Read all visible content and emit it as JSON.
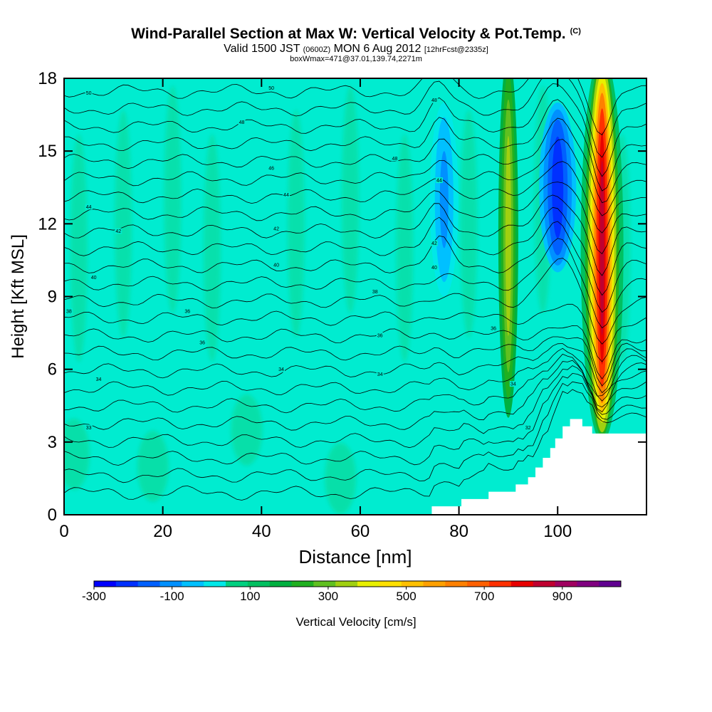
{
  "title": {
    "main": "Wind-Parallel Section at Max W: Vertical Velocity & Pot.Temp.",
    "copyright": "(C)",
    "valid_prefix": "Valid 1500 JST",
    "valid_utc": "(0600Z)",
    "valid_date": "MON 6 Aug 2012",
    "forecast": "[12hrFcst@2335z]",
    "box_info": "boxWmax=471@37.01,139.74,2271m"
  },
  "chart_data": {
    "type": "heatmap",
    "xlabel": "Distance [nm]",
    "ylabel": "Height [Kft MSL]",
    "xlim": [
      0,
      118
    ],
    "ylim": [
      0,
      18
    ],
    "x_ticks": [
      0,
      20,
      40,
      60,
      80,
      100
    ],
    "y_ticks": [
      0,
      3,
      6,
      9,
      12,
      15,
      18
    ],
    "colorbar": {
      "label": "Vertical Velocity [cm/s]",
      "tick_labels": [
        "-300",
        "-100",
        "100",
        "300",
        "500",
        "700",
        "900"
      ],
      "tick_values": [
        -300,
        -100,
        100,
        300,
        500,
        700,
        900
      ],
      "range": [
        -300,
        1050
      ],
      "colors": [
        "#0000ff",
        "#0030ff",
        "#0060ff",
        "#0090ff",
        "#00c0ff",
        "#00e8e8",
        "#00d080",
        "#00c060",
        "#00b040",
        "#20b020",
        "#60c020",
        "#a0d010",
        "#e8f000",
        "#ffe000",
        "#ffc000",
        "#ffa000",
        "#ff8000",
        "#ff6000",
        "#ff3000",
        "#e80000",
        "#c00030",
        "#a00060",
        "#800080",
        "#600090"
      ]
    },
    "series": [
      {
        "name": "Vertical Velocity",
        "type": "filled-contour",
        "features": [
          {
            "kind": "updraft",
            "x": 109,
            "y_range": [
              3,
              18
            ],
            "peak": 900
          },
          {
            "kind": "updraft",
            "x": 90,
            "y_range": [
              4,
              18
            ],
            "peak": 300
          },
          {
            "kind": "downdraft",
            "x": 100,
            "y_range": [
              10,
              17
            ],
            "peak": -250
          },
          {
            "kind": "downdraft",
            "x": 77,
            "y_range": [
              9,
              17
            ],
            "peak": -100
          }
        ]
      },
      {
        "name": "Pot.Temp.",
        "type": "contour",
        "labels": [
          {
            "x": 5,
            "y": 17.4,
            "value": "50"
          },
          {
            "x": 42,
            "y": 17.6,
            "value": "50"
          },
          {
            "x": 75,
            "y": 17.1,
            "value": "48"
          },
          {
            "x": 36,
            "y": 16.2,
            "value": "48"
          },
          {
            "x": 67,
            "y": 14.7,
            "value": "48"
          },
          {
            "x": 42,
            "y": 14.3,
            "value": "46"
          },
          {
            "x": 5,
            "y": 12.7,
            "value": "44"
          },
          {
            "x": 45,
            "y": 13.2,
            "value": "44"
          },
          {
            "x": 76,
            "y": 13.8,
            "value": "44"
          },
          {
            "x": 11,
            "y": 11.7,
            "value": "42"
          },
          {
            "x": 43,
            "y": 11.8,
            "value": "42"
          },
          {
            "x": 75,
            "y": 11.2,
            "value": "42"
          },
          {
            "x": 43,
            "y": 10.3,
            "value": "40"
          },
          {
            "x": 6,
            "y": 9.8,
            "value": "40"
          },
          {
            "x": 75,
            "y": 10.2,
            "value": "40"
          },
          {
            "x": 63,
            "y": 9.2,
            "value": "38"
          },
          {
            "x": 1,
            "y": 8.4,
            "value": "38"
          },
          {
            "x": 25,
            "y": 8.4,
            "value": "36"
          },
          {
            "x": 28,
            "y": 7.1,
            "value": "36"
          },
          {
            "x": 64,
            "y": 7.4,
            "value": "36"
          },
          {
            "x": 87,
            "y": 7.7,
            "value": "36"
          },
          {
            "x": 7,
            "y": 5.6,
            "value": "34"
          },
          {
            "x": 44,
            "y": 6.0,
            "value": "34"
          },
          {
            "x": 64,
            "y": 5.8,
            "value": "34"
          },
          {
            "x": 91,
            "y": 5.4,
            "value": "34"
          },
          {
            "x": 5,
            "y": 3.6,
            "value": "33"
          },
          {
            "x": 94,
            "y": 3.6,
            "value": "32"
          }
        ]
      }
    ],
    "terrain_label": "",
    "grid": false
  }
}
